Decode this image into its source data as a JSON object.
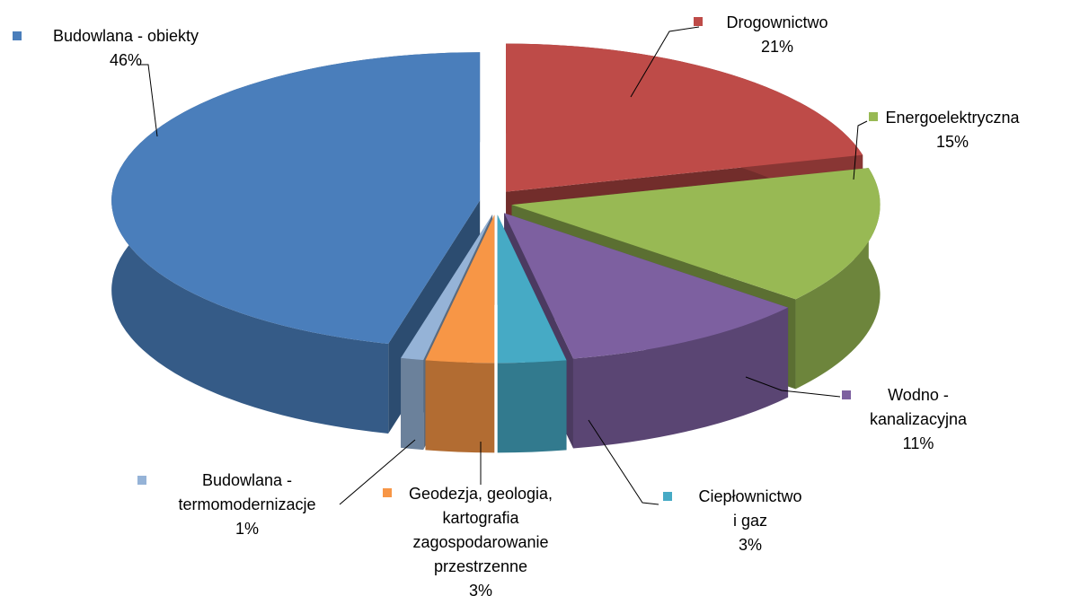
{
  "chart_data": {
    "type": "pie",
    "categories": [
      "Drogownictwo",
      "Energoelektryczna",
      "Wodno -\nkanalizacyjna",
      "Ciepłownictwo\ni gaz",
      "Geodezja, geologia,\nkartografia\nzagospodarowanie\nprzestrzenne",
      "Budowlana -\ntermomodernizacje",
      "Budowlana - obiekty"
    ],
    "values": [
      21,
      15,
      11,
      3,
      3,
      1,
      46
    ],
    "value_labels": [
      "21%",
      "15%",
      "11%",
      "3%",
      "3%",
      "1%",
      "46%"
    ],
    "colors": [
      "#be4b48",
      "#98b954",
      "#7d60a0",
      "#46aac5",
      "#f79646",
      "#95b3d7",
      "#4a7ebb"
    ]
  }
}
